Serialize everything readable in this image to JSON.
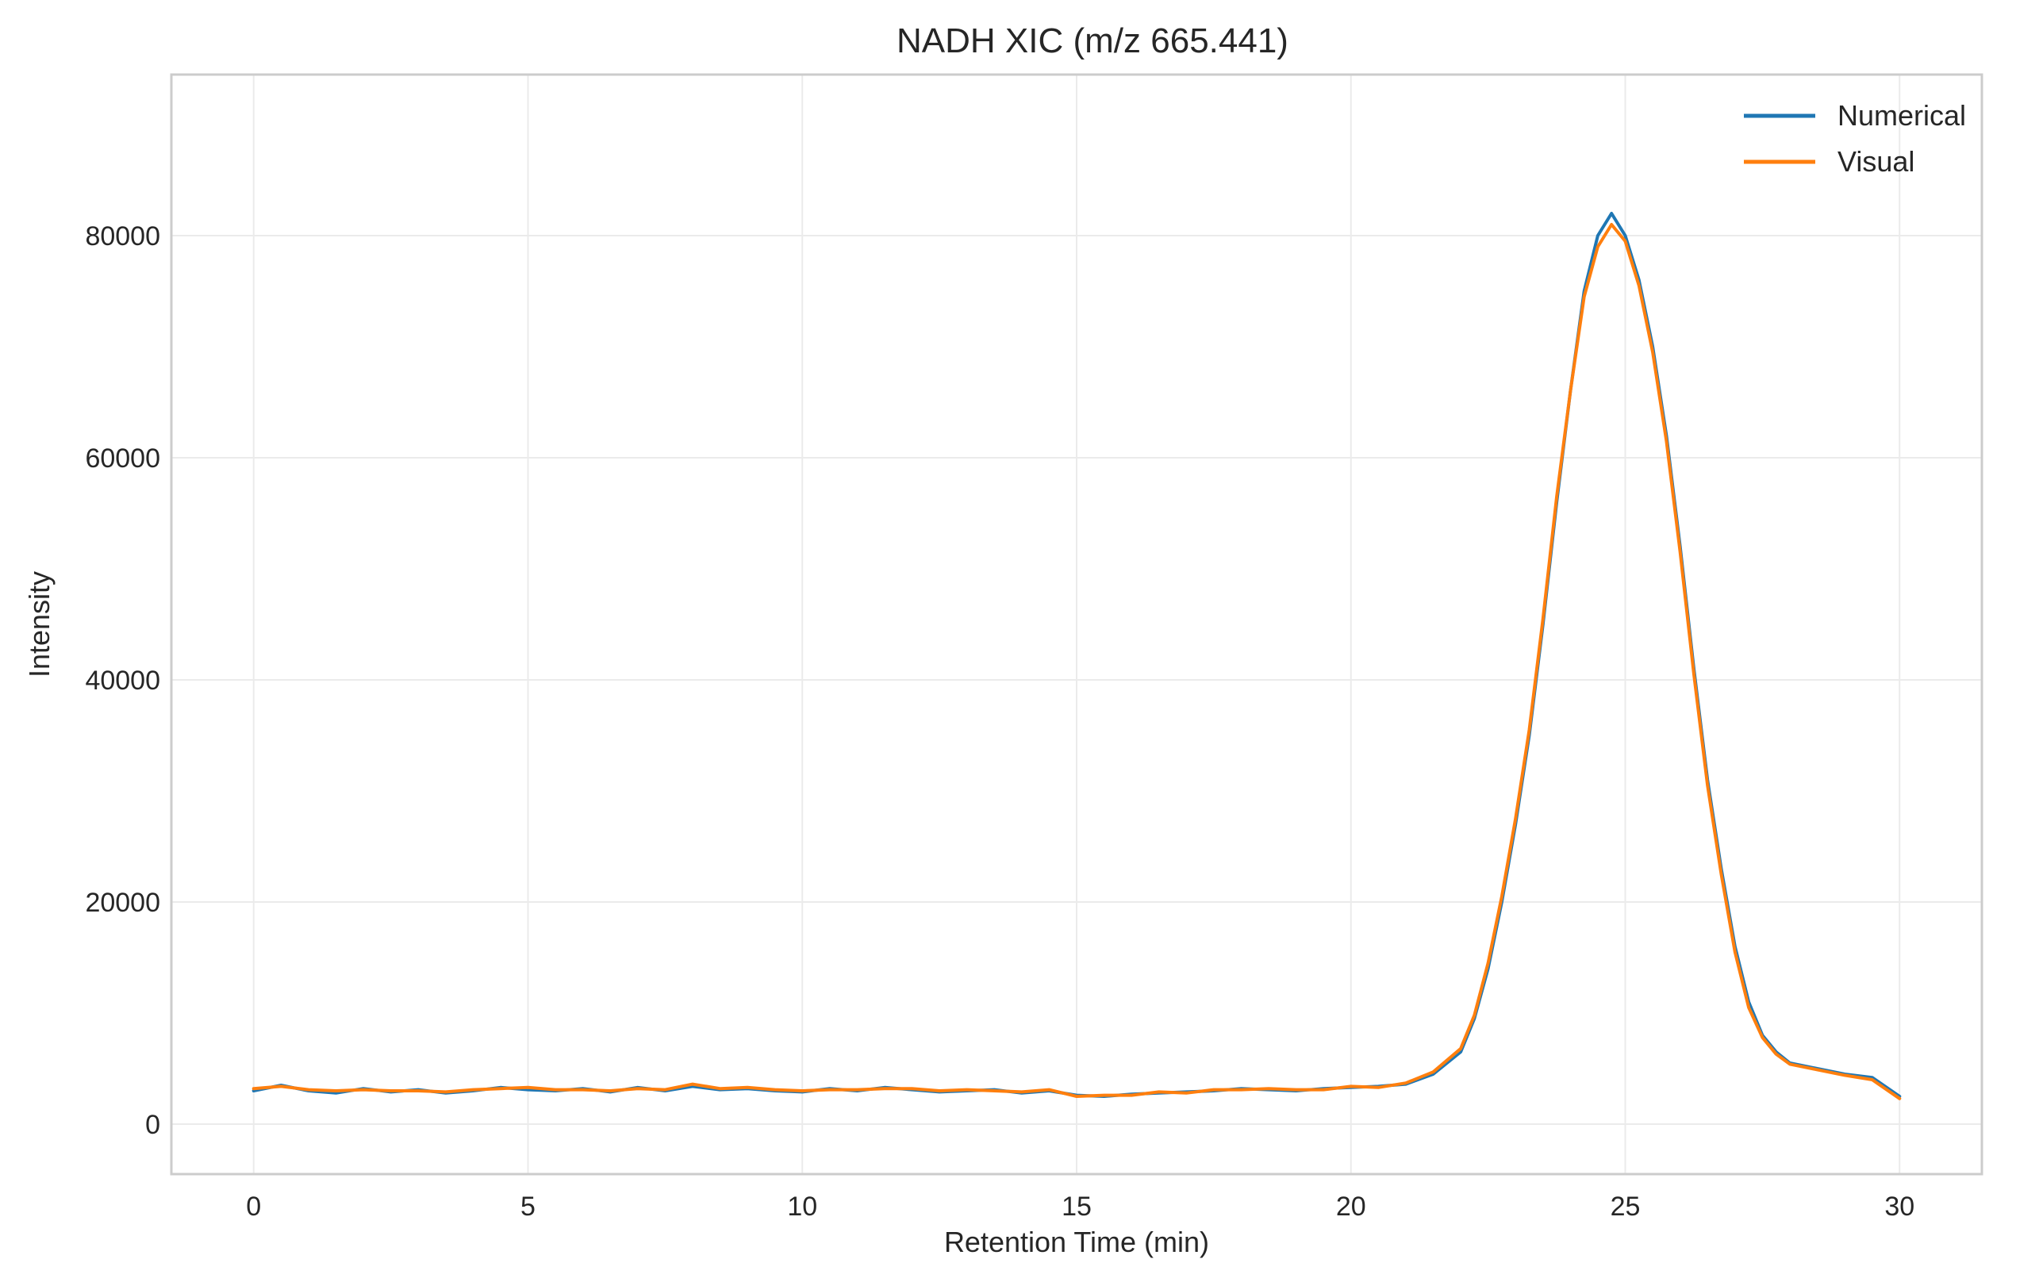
{
  "chart_data": {
    "type": "line",
    "title": "NADH XIC (m/z 665.441)",
    "xlabel": "Retention Time (min)",
    "ylabel": "Intensity",
    "xlim": [
      -1.5,
      31.5
    ],
    "ylim": [
      -4500,
      94500
    ],
    "xticks": [
      0,
      5,
      10,
      15,
      20,
      25,
      30
    ],
    "xtick_labels": [
      "0",
      "5",
      "10",
      "15",
      "20",
      "25",
      "30"
    ],
    "yticks": [
      0,
      20000,
      40000,
      60000,
      80000
    ],
    "ytick_labels": [
      "0",
      "20000",
      "40000",
      "60000",
      "80000"
    ],
    "grid": true,
    "legend_position": "top-right",
    "series": [
      {
        "name": "Numerical",
        "color": "#1f77b4",
        "x": [
          0,
          0.5,
          1,
          1.5,
          2,
          2.5,
          3,
          3.5,
          4,
          4.5,
          5,
          5.5,
          6,
          6.5,
          7,
          7.5,
          8,
          8.5,
          9,
          9.5,
          10,
          10.5,
          11,
          11.5,
          12,
          12.5,
          13,
          13.5,
          14,
          14.5,
          15,
          15.5,
          16,
          16.5,
          17,
          17.5,
          18,
          18.5,
          19,
          19.5,
          20,
          20.5,
          21,
          21.5,
          22,
          22.25,
          22.5,
          22.75,
          23,
          23.25,
          23.5,
          23.75,
          24,
          24.25,
          24.5,
          24.75,
          25,
          25.25,
          25.5,
          25.75,
          26,
          26.25,
          26.5,
          26.75,
          27,
          27.25,
          27.5,
          27.75,
          28,
          28.5,
          29,
          29.5,
          30
        ],
        "y": [
          3000,
          3500,
          3000,
          2800,
          3200,
          2900,
          3100,
          2800,
          3000,
          3300,
          3100,
          3000,
          3200,
          2900,
          3300,
          3000,
          3400,
          3100,
          3200,
          3000,
          2900,
          3200,
          3000,
          3300,
          3100,
          2900,
          3000,
          3100,
          2800,
          3000,
          2600,
          2500,
          2700,
          2800,
          2900,
          3000,
          3200,
          3100,
          3000,
          3200,
          3300,
          3400,
          3600,
          4500,
          6500,
          9500,
          14000,
          20000,
          27000,
          35000,
          45000,
          56000,
          66000,
          75000,
          80000,
          82000,
          80000,
          76000,
          70000,
          62000,
          52000,
          41000,
          31000,
          23000,
          16000,
          11000,
          8000,
          6500,
          5500,
          5000,
          4500,
          4200,
          2500
        ]
      },
      {
        "name": "Visual",
        "color": "#ff7f0e",
        "x": [
          0,
          0.5,
          1,
          1.5,
          2,
          2.5,
          3,
          3.5,
          4,
          4.5,
          5,
          5.5,
          6,
          6.5,
          7,
          7.5,
          8,
          8.5,
          9,
          9.5,
          10,
          10.5,
          11,
          11.5,
          12,
          12.5,
          13,
          13.5,
          14,
          14.5,
          15,
          15.5,
          16,
          16.5,
          17,
          17.5,
          18,
          18.5,
          19,
          19.5,
          20,
          20.5,
          21,
          21.5,
          22,
          22.25,
          22.5,
          22.75,
          23,
          23.25,
          23.5,
          23.75,
          24,
          24.25,
          24.5,
          24.75,
          25,
          25.25,
          25.5,
          25.75,
          26,
          26.25,
          26.5,
          26.75,
          27,
          27.25,
          27.5,
          27.75,
          28,
          28.5,
          29,
          29.5,
          30
        ],
        "y": [
          3200,
          3400,
          3100,
          3000,
          3100,
          3000,
          3000,
          2900,
          3100,
          3200,
          3300,
          3100,
          3100,
          3000,
          3200,
          3100,
          3600,
          3200,
          3300,
          3100,
          3000,
          3100,
          3100,
          3200,
          3200,
          3000,
          3100,
          3000,
          2900,
          3100,
          2500,
          2600,
          2600,
          2900,
          2800,
          3100,
          3100,
          3200,
          3100,
          3100,
          3400,
          3300,
          3700,
          4700,
          6800,
          9800,
          14500,
          20500,
          27500,
          35500,
          45500,
          56500,
          66000,
          74500,
          79000,
          81000,
          79500,
          75500,
          69500,
          61500,
          51500,
          40500,
          30500,
          22500,
          15500,
          10500,
          7800,
          6300,
          5400,
          4900,
          4400,
          4000,
          2300
        ]
      }
    ]
  }
}
